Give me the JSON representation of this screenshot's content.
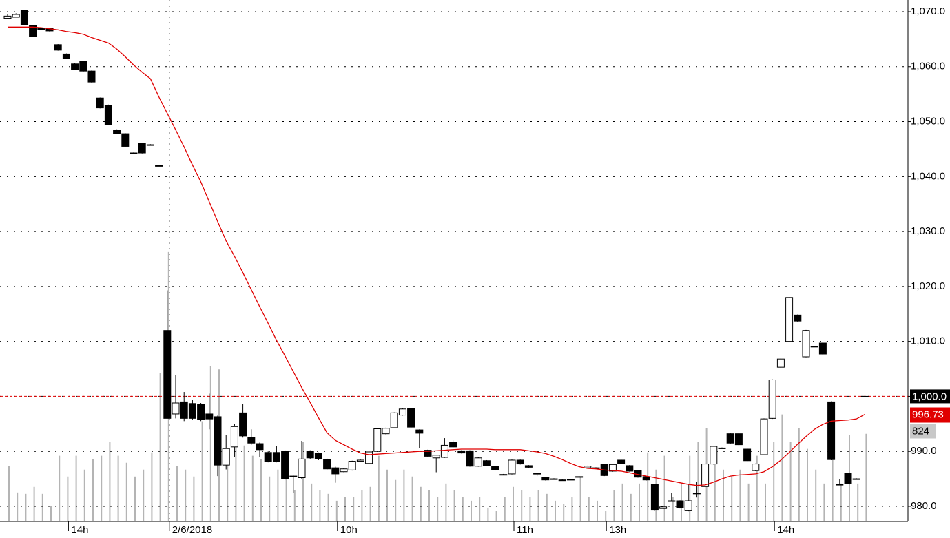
{
  "chart_data": {
    "type": "candlestick",
    "categories": [
      null,
      null,
      null,
      null,
      null,
      null,
      null,
      "14h",
      null,
      null,
      null,
      null,
      null,
      null,
      null,
      null,
      null,
      null,
      null,
      "2/6/2018",
      null,
      null,
      null,
      null,
      null,
      null,
      null,
      null,
      null,
      null,
      null,
      null,
      null,
      null,
      null,
      null,
      null,
      null,
      null,
      "10h",
      null,
      null,
      null,
      null,
      null,
      null,
      null,
      null,
      null,
      null,
      null,
      null,
      null,
      null,
      null,
      null,
      null,
      null,
      null,
      null,
      "11h",
      null,
      null,
      null,
      null,
      null,
      null,
      null,
      null,
      null,
      null,
      "13h",
      null,
      null,
      null,
      null,
      null,
      null,
      null,
      null,
      null,
      null,
      null,
      null,
      null,
      null,
      null,
      null,
      null,
      null,
      null,
      "14h",
      null,
      null,
      null,
      null,
      null,
      null,
      null,
      null,
      null,
      null,
      null
    ],
    "open": [
      1068.8,
      1069.0,
      1070.2,
      1067.5,
      1067.0,
      1067.0,
      1064.0,
      1062.3,
      1060.5,
      1061.0,
      1059.2,
      1054.3,
      1053.0,
      1048.5,
      1047.8,
      1044.3,
      1046.0,
      1045.8,
      1042.0,
      1012.0,
      996.8,
      999.0,
      998.7,
      998.6,
      996.8,
      996.3,
      987.5,
      990.8,
      997.0,
      992.5,
      991.4,
      989.8,
      989.8,
      990.0,
      985.5,
      985.2,
      990.0,
      989.6,
      988.5,
      987.0,
      986.3,
      986.6,
      988.2,
      987.8,
      990.0,
      993.2,
      994.3,
      996.6,
      997.8,
      993.9,
      990.2,
      988.8,
      988.9,
      991.6,
      990.1,
      990.1,
      987.3,
      988.3,
      987.3,
      985.8,
      985.9,
      988.4,
      987.4,
      986.0,
      985.2,
      985.0,
      984.8,
      984.9,
      985.4,
      987.0,
      987.0,
      987.6,
      986.4,
      988.4,
      987.4,
      986.5,
      985.4,
      984.0,
      979.6,
      981.0,
      981.0,
      979.2,
      982.4,
      983.6,
      987.7,
      990.6,
      993.2,
      993.2,
      990.4,
      986.5,
      989.4,
      996.0,
      1005.3,
      1010.0,
      1014.8,
      1007.2,
      1009.1,
      1009.7,
      999.0,
      984.0,
      986.0,
      985.0,
      1000.0
    ],
    "high": [
      1069.5,
      1069.7,
      1070.3,
      1067.6,
      1067.1,
      1067.1,
      1064.1,
      1062.4,
      1060.6,
      1061.1,
      1059.3,
      1054.4,
      1053.1,
      1048.6,
      1047.9,
      1044.4,
      1046.1,
      1045.9,
      1042.1,
      1019.3,
      1003.9,
      1000.8,
      999.3,
      998.8,
      1000.5,
      996.5,
      993.0,
      995.0,
      998.6,
      994.0,
      991.6,
      990.0,
      991.0,
      990.2,
      985.6,
      991.9,
      990.2,
      989.8,
      988.7,
      987.2,
      986.9,
      988.3,
      988.5,
      990.0,
      994.2,
      994.3,
      997.1,
      997.8,
      997.9,
      994.0,
      990.3,
      989.4,
      992.4,
      992.0,
      990.2,
      990.2,
      988.9,
      988.4,
      987.4,
      985.9,
      988.5,
      988.5,
      987.5,
      986.1,
      985.3,
      985.1,
      984.9,
      985.0,
      985.5,
      987.4,
      987.1,
      987.7,
      987.7,
      988.5,
      987.5,
      986.6,
      985.5,
      984.1,
      980.0,
      982.5,
      981.1,
      984.0,
      984.5,
      987.8,
      991.0,
      990.7,
      993.3,
      993.3,
      990.5,
      987.8,
      996.0,
      1003.1,
      1006.9,
      1018.1,
      1014.9,
      1012.1,
      1009.2,
      1009.8,
      999.1,
      985.0,
      986.1,
      985.1,
      1000.1
    ],
    "low": [
      1068.7,
      1069.0,
      1067.5,
      1065.4,
      1066.7,
      1066.4,
      1062.9,
      1061.4,
      1059.4,
      1059.1,
      1057.1,
      1052.4,
      1049.4,
      1047.7,
      1045.4,
      1044.2,
      1044.2,
      1045.7,
      1041.9,
      996.0,
      996.0,
      995.5,
      995.8,
      995.5,
      994.0,
      985.5,
      986.7,
      989.0,
      992.5,
      991.2,
      989.0,
      988.0,
      988.0,
      984.8,
      982.5,
      985.0,
      988.6,
      988.4,
      986.6,
      984.3,
      986.2,
      986.5,
      988.1,
      987.7,
      989.9,
      993.1,
      994.2,
      996.5,
      994.3,
      990.6,
      989.0,
      986.2,
      988.8,
      990.7,
      989.6,
      987.2,
      987.2,
      987.3,
      986.5,
      985.7,
      985.8,
      987.6,
      987.0,
      985.5,
      984.7,
      984.9,
      984.7,
      984.8,
      985.3,
      986.9,
      986.9,
      985.5,
      986.3,
      987.7,
      986.3,
      985.2,
      984.7,
      979.2,
      979.5,
      980.9,
      979.6,
      979.1,
      981.6,
      983.5,
      987.6,
      990.5,
      991.4,
      991.1,
      988.2,
      986.4,
      989.3,
      995.9,
      1005.2,
      1009.9,
      1013.6,
      1007.1,
      1009.0,
      1007.6,
      988.4,
      983.9,
      984.1,
      984.9,
      999.9
    ],
    "close": [
      1069.2,
      1069.5,
      1067.6,
      1065.5,
      1066.8,
      1066.5,
      1063.0,
      1061.5,
      1059.5,
      1059.2,
      1057.2,
      1052.5,
      1049.5,
      1047.8,
      1045.5,
      1044.3,
      1044.3,
      1045.8,
      1042.0,
      996.0,
      998.8,
      996.0,
      996.0,
      995.8,
      995.9,
      987.5,
      990.5,
      994.5,
      992.8,
      991.5,
      990.3,
      988.2,
      988.2,
      985.0,
      985.5,
      988.6,
      988.8,
      988.6,
      986.8,
      985.9,
      986.8,
      988.2,
      988.4,
      989.9,
      994.1,
      994.2,
      997.0,
      997.7,
      994.4,
      993.3,
      989.1,
      989.3,
      991.1,
      990.8,
      989.7,
      987.3,
      988.8,
      987.4,
      986.6,
      985.8,
      988.4,
      987.7,
      987.1,
      986.0,
      984.8,
      985.0,
      984.8,
      984.9,
      985.4,
      987.3,
      987.0,
      985.6,
      987.6,
      987.8,
      986.4,
      985.3,
      984.8,
      979.3,
      979.9,
      981.0,
      979.7,
      981.0,
      982.4,
      987.7,
      990.9,
      990.6,
      991.5,
      991.2,
      988.3,
      987.7,
      995.9,
      1003.0,
      1006.8,
      1018.0,
      1013.7,
      1012.0,
      1009.1,
      1007.7,
      988.5,
      984.0,
      984.2,
      985.0,
      1000.0
    ],
    "moving_average": {
      "color": "#e00000",
      "values": [
        1067.2,
        1067.2,
        1067.2,
        1067.2,
        1067.1,
        1066.9,
        1066.7,
        1066.4,
        1066.2,
        1065.9,
        1065.3,
        1064.8,
        1064.3,
        1063.2,
        1061.8,
        1060.3,
        1059.0,
        1057.8,
        1054.5,
        1051.5,
        1048.5,
        1045.4,
        1042.1,
        1039.0,
        1035.4,
        1031.8,
        1028.3,
        1025.5,
        1022.5,
        1019.4,
        1016.3,
        1013.3,
        1010.2,
        1007.4,
        1004.5,
        1001.6,
        998.9,
        996.1,
        993.4,
        992.0,
        991.2,
        990.4,
        989.7,
        989.4,
        989.5,
        989.6,
        989.7,
        989.8,
        989.9,
        990.0,
        990.0,
        990.1,
        990.2,
        990.3,
        990.4,
        990.4,
        990.4,
        990.4,
        990.3,
        990.3,
        990.3,
        990.3,
        990.1,
        989.9,
        989.6,
        989.1,
        988.5,
        987.8,
        987.2,
        986.9,
        986.8,
        986.6,
        986.5,
        986.4,
        986.1,
        985.8,
        985.5,
        985.2,
        984.9,
        984.6,
        984.3,
        984.0,
        983.8,
        983.9,
        984.4,
        985.0,
        985.5,
        985.7,
        985.8,
        985.9,
        986.3,
        987.2,
        988.4,
        989.8,
        991.3,
        992.7,
        994.0,
        994.9,
        995.5,
        995.6,
        995.7,
        995.9,
        996.73
      ]
    },
    "volume": {
      "color": "#b4b4b4",
      "ylim": [
        0,
        4900
      ],
      "values": [
        519,
        273,
        260,
        325,
        260,
        143,
        617,
        422,
        617,
        487,
        584,
        617,
        747,
        617,
        552,
        422,
        487,
        649,
        1396,
        2532,
        519,
        487,
        422,
        942,
        1461,
        1429,
        617,
        747,
        714,
        617,
        584,
        422,
        487,
        422,
        292,
        747,
        357,
        292,
        260,
        195,
        227,
        227,
        292,
        325,
        617,
        487,
        390,
        487,
        422,
        325,
        292,
        227,
        357,
        292,
        227,
        195,
        227,
        130,
        97,
        227,
        325,
        292,
        227,
        292,
        260,
        195,
        162,
        227,
        422,
        227,
        195,
        97,
        292,
        357,
        260,
        357,
        649,
        487,
        617,
        227,
        357,
        617,
        747,
        877,
        682,
        487,
        422,
        487,
        357,
        617,
        357,
        747,
        1006,
        747,
        877,
        682,
        487,
        357,
        812,
        357,
        812,
        357,
        824
      ]
    },
    "ylim": [
      977.24,
      1072.13
    ],
    "yticks": [
      {
        "value": 980,
        "label": "980.0"
      },
      {
        "value": 990,
        "label": "990.0"
      },
      {
        "value": 1000,
        "label": "1,000.0"
      },
      {
        "value": 1010,
        "label": "1,010.0"
      },
      {
        "value": 1020,
        "label": "1,020.0"
      },
      {
        "value": 1030,
        "label": "1,030.0"
      },
      {
        "value": 1040,
        "label": "1,040.0"
      },
      {
        "value": 1050,
        "label": "1,050.0"
      },
      {
        "value": 1060,
        "label": "1,060.0"
      },
      {
        "value": 1070,
        "label": "1,070.0"
      }
    ],
    "reference_line": {
      "value": 1000,
      "label": "1,000.0",
      "color": "#e00000"
    },
    "grid": true
  }
}
